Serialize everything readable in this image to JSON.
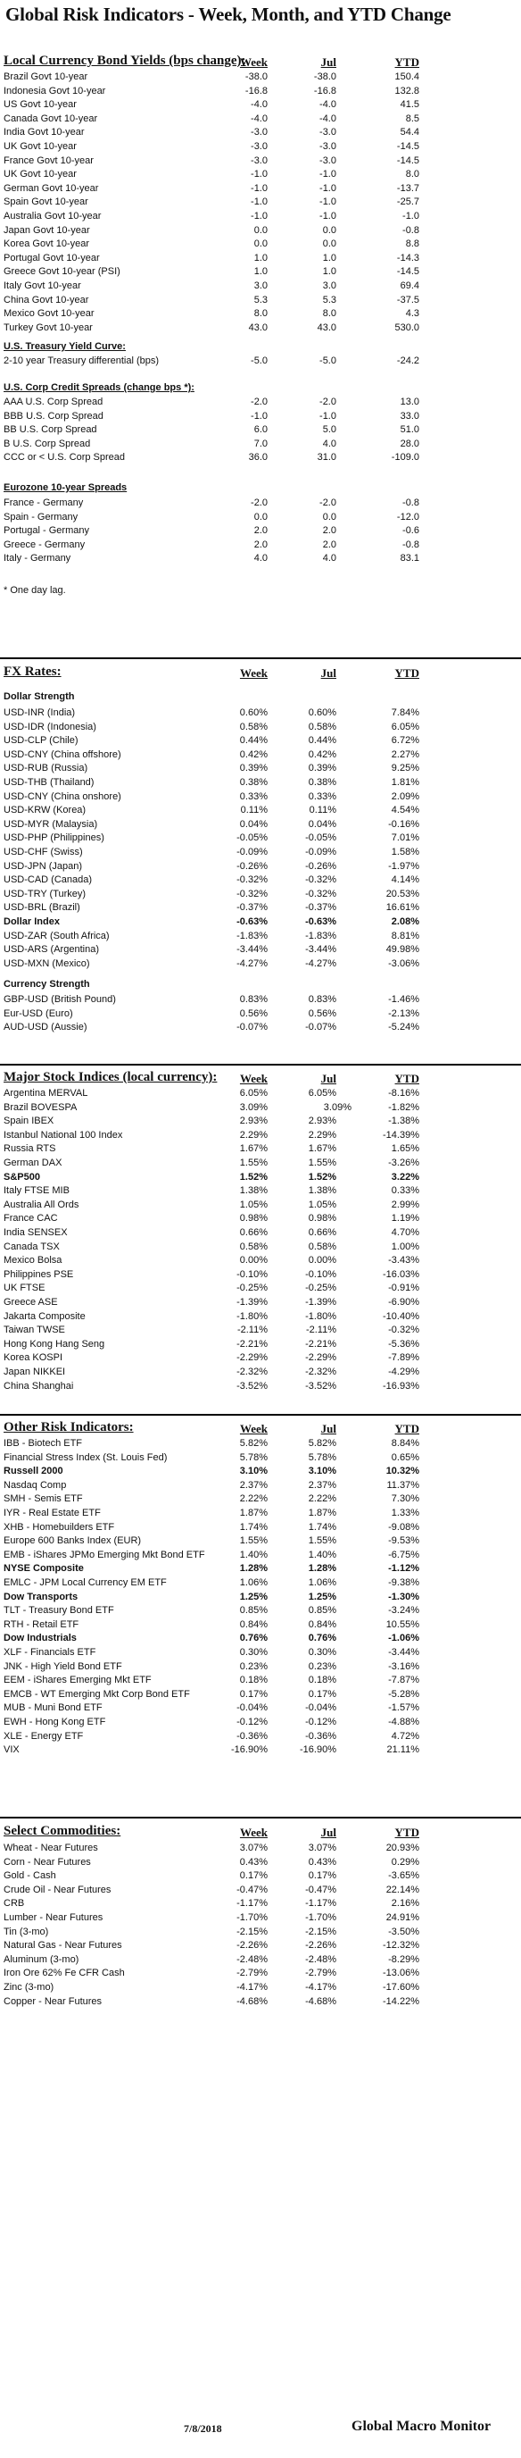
{
  "title": "Global Risk Indicators - Week, Month, and YTD Change",
  "columns": {
    "week": "Week",
    "month": "Jul",
    "ytd": "YTD"
  },
  "bonds": {
    "heading": "Local Currency Bond Yields (bps change):",
    "rows": [
      {
        "name": "Brazil Govt 10-year",
        "week": "-38.0",
        "month": "-38.0",
        "ytd": "150.4"
      },
      {
        "name": "Indonesia Govt 10-year",
        "week": "-16.8",
        "month": "-16.8",
        "ytd": "132.8"
      },
      {
        "name": "US Govt 10-year",
        "week": "-4.0",
        "month": "-4.0",
        "ytd": "41.5"
      },
      {
        "name": "Canada Govt 10-year",
        "week": "-4.0",
        "month": "-4.0",
        "ytd": "8.5"
      },
      {
        "name": "India Govt 10-year",
        "week": "-3.0",
        "month": "-3.0",
        "ytd": "54.4"
      },
      {
        "name": "UK Govt 10-year",
        "week": "-3.0",
        "month": "-3.0",
        "ytd": "-14.5"
      },
      {
        "name": "France Govt 10-year",
        "week": "-3.0",
        "month": "-3.0",
        "ytd": "-14.5"
      },
      {
        "name": "UK Govt 10-year",
        "week": "-1.0",
        "month": "-1.0",
        "ytd": "8.0"
      },
      {
        "name": "German Govt 10-year",
        "week": "-1.0",
        "month": "-1.0",
        "ytd": "-13.7"
      },
      {
        "name": "Spain Govt 10-year",
        "week": "-1.0",
        "month": "-1.0",
        "ytd": "-25.7"
      },
      {
        "name": "Australia Govt 10-year",
        "week": "-1.0",
        "month": "-1.0",
        "ytd": "-1.0"
      },
      {
        "name": "Japan Govt 10-year",
        "week": "0.0",
        "month": "0.0",
        "ytd": "-0.8"
      },
      {
        "name": "Korea Govt 10-year",
        "week": "0.0",
        "month": "0.0",
        "ytd": "8.8"
      },
      {
        "name": "Portugal Govt 10-year",
        "week": "1.0",
        "month": "1.0",
        "ytd": "-14.3"
      },
      {
        "name": "Greece Govt 10-year (PSI)",
        "week": "1.0",
        "month": "1.0",
        "ytd": "-14.5"
      },
      {
        "name": "Italy Govt 10-year",
        "week": "3.0",
        "month": "3.0",
        "ytd": "69.4"
      },
      {
        "name": "China Govt 10-year",
        "week": "5.3",
        "month": "5.3",
        "ytd": "-37.5"
      },
      {
        "name": "Mexico Govt 10-year",
        "week": "8.0",
        "month": "8.0",
        "ytd": "4.3"
      },
      {
        "name": "Turkey Govt 10-year",
        "week": "43.0",
        "month": "43.0",
        "ytd": "530.0"
      }
    ],
    "curve_heading": "U.S. Treasury Yield Curve:",
    "curve_rows": [
      {
        "name": "2-10 year Treasury differential (bps)",
        "week": "-5.0",
        "month": "-5.0",
        "ytd": "-24.2"
      }
    ],
    "credit_heading": "U.S. Corp Credit Spreads (change bps *):",
    "credit_rows": [
      {
        "name": "AAA U.S. Corp Spread",
        "week": "-2.0",
        "month": "-2.0",
        "ytd": "13.0"
      },
      {
        "name": "BBB U.S. Corp Spread",
        "week": "-1.0",
        "month": "-1.0",
        "ytd": "33.0"
      },
      {
        "name": "BB U.S. Corp Spread",
        "week": "6.0",
        "month": "5.0",
        "ytd": "51.0"
      },
      {
        "name": "B U.S. Corp Spread",
        "week": "7.0",
        "month": "4.0",
        "ytd": "28.0"
      },
      {
        "name": "CCC or < U.S. Corp Spread",
        "week": "36.0",
        "month": "31.0",
        "ytd": "-109.0"
      }
    ],
    "euro_heading": "Eurozone 10-year Spreads",
    "euro_rows": [
      {
        "name": "France - Germany",
        "week": "-2.0",
        "month": "-2.0",
        "ytd": "-0.8"
      },
      {
        "name": "Spain - Germany",
        "week": "0.0",
        "month": "0.0",
        "ytd": "-12.0"
      },
      {
        "name": "Portugal - Germany",
        "week": "2.0",
        "month": "2.0",
        "ytd": "-0.6"
      },
      {
        "name": "Greece - Germany",
        "week": "2.0",
        "month": "2.0",
        "ytd": "-0.8"
      },
      {
        "name": "Italy - Germany",
        "week": "4.0",
        "month": "4.0",
        "ytd": "83.1"
      }
    ],
    "footnote": "* One day lag."
  },
  "fx": {
    "heading": "FX Rates:",
    "strength_heading": "Dollar Strength",
    "rows": [
      {
        "name": "USD-INR (India)",
        "week": "0.60%",
        "month": "0.60%",
        "ytd": "7.84%"
      },
      {
        "name": "USD-IDR (Indonesia)",
        "week": "0.58%",
        "month": "0.58%",
        "ytd": "6.05%"
      },
      {
        "name": "USD-CLP (Chile)",
        "week": "0.44%",
        "month": "0.44%",
        "ytd": "6.72%"
      },
      {
        "name": "USD-CNY (China offshore)",
        "week": "0.42%",
        "month": "0.42%",
        "ytd": "2.27%"
      },
      {
        "name": "USD-RUB (Russia)",
        "week": "0.39%",
        "month": "0.39%",
        "ytd": "9.25%"
      },
      {
        "name": "USD-THB  (Thailand)",
        "week": "0.38%",
        "month": "0.38%",
        "ytd": "1.81%"
      },
      {
        "name": "USD-CNY (China onshore)",
        "week": "0.33%",
        "month": "0.33%",
        "ytd": "2.09%"
      },
      {
        "name": "USD-KRW (Korea)",
        "week": "0.11%",
        "month": "0.11%",
        "ytd": "4.54%"
      },
      {
        "name": "USD-MYR (Malaysia)",
        "week": "0.04%",
        "month": "0.04%",
        "ytd": "-0.16%"
      },
      {
        "name": "USD-PHP (Philippines)",
        "week": "-0.05%",
        "month": "-0.05%",
        "ytd": "7.01%"
      },
      {
        "name": "USD-CHF (Swiss)",
        "week": "-0.09%",
        "month": "-0.09%",
        "ytd": "1.58%"
      },
      {
        "name": "USD-JPN (Japan)",
        "week": "-0.26%",
        "month": "-0.26%",
        "ytd": "-1.97%"
      },
      {
        "name": "USD-CAD (Canada)",
        "week": "-0.32%",
        "month": "-0.32%",
        "ytd": "4.14%"
      },
      {
        "name": "USD-TRY (Turkey)",
        "week": "-0.32%",
        "month": "-0.32%",
        "ytd": "20.53%"
      },
      {
        "name": "USD-BRL (Brazil)",
        "week": "-0.37%",
        "month": "-0.37%",
        "ytd": "16.61%"
      },
      {
        "name": "Dollar Index",
        "week": "-0.63%",
        "month": "-0.63%",
        "ytd": "2.08%",
        "bold": true
      },
      {
        "name": "USD-ZAR (South Africa)",
        "week": "-1.83%",
        "month": "-1.83%",
        "ytd": "8.81%"
      },
      {
        "name": "USD-ARS (Argentina)",
        "week": "-3.44%",
        "month": "-3.44%",
        "ytd": "49.98%"
      },
      {
        "name": "USD-MXN  (Mexico)",
        "week": "-4.27%",
        "month": "-4.27%",
        "ytd": "-3.06%"
      }
    ],
    "currency_heading": "Currency Strength",
    "currency_rows": [
      {
        "name": "GBP-USD (British Pound)",
        "week": "0.83%",
        "month": "0.83%",
        "ytd": "-1.46%"
      },
      {
        "name": "Eur-USD (Euro)",
        "week": "0.56%",
        "month": "0.56%",
        "ytd": "-2.13%"
      },
      {
        "name": "AUD-USD (Aussie)",
        "week": "-0.07%",
        "month": "-0.07%",
        "ytd": "-5.24%"
      }
    ]
  },
  "stocks": {
    "heading": "Major Stock Indices (local currency):",
    "rows": [
      {
        "name": "Argentina MERVAL",
        "week": "6.05%",
        "month": "6.05%",
        "ytd": "-8.16%"
      },
      {
        "name": "Brazil BOVESPA",
        "week": "3.09%",
        "month": "3.09%",
        "ytd": "-1.82%"
      },
      {
        "name": "Spain IBEX",
        "week": "2.93%",
        "month": "2.93%",
        "ytd": "-1.38%"
      },
      {
        "name": "Istanbul National 100 Index",
        "week": "2.29%",
        "month": "2.29%",
        "ytd": "-14.39%"
      },
      {
        "name": "Russia RTS",
        "week": "1.67%",
        "month": "1.67%",
        "ytd": "1.65%"
      },
      {
        "name": "German DAX",
        "week": "1.55%",
        "month": "1.55%",
        "ytd": "-3.26%"
      },
      {
        "name": "S&P500",
        "week": "1.52%",
        "month": "1.52%",
        "ytd": "3.22%",
        "bold": true
      },
      {
        "name": "Italy FTSE MIB",
        "week": "1.38%",
        "month": "1.38%",
        "ytd": "0.33%"
      },
      {
        "name": "Australia All Ords",
        "week": "1.05%",
        "month": "1.05%",
        "ytd": "2.99%"
      },
      {
        "name": "France CAC",
        "week": "0.98%",
        "month": "0.98%",
        "ytd": "1.19%"
      },
      {
        "name": "India SENSEX",
        "week": "0.66%",
        "month": "0.66%",
        "ytd": "4.70%"
      },
      {
        "name": "Canada TSX",
        "week": "0.58%",
        "month": "0.58%",
        "ytd": "1.00%"
      },
      {
        "name": "Mexico Bolsa",
        "week": "0.00%",
        "month": "0.00%",
        "ytd": "-3.43%"
      },
      {
        "name": "Philippines PSE",
        "week": "-0.10%",
        "month": "-0.10%",
        "ytd": "-16.03%"
      },
      {
        "name": "UK FTSE",
        "week": "-0.25%",
        "month": "-0.25%",
        "ytd": "-0.91%"
      },
      {
        "name": "Greece ASE",
        "week": "-1.39%",
        "month": "-1.39%",
        "ytd": "-6.90%"
      },
      {
        "name": "Jakarta Composite",
        "week": "-1.80%",
        "month": "-1.80%",
        "ytd": "-10.40%"
      },
      {
        "name": "Taiwan  TWSE",
        "week": "-2.11%",
        "month": "-2.11%",
        "ytd": "-0.32%"
      },
      {
        "name": "Hong Kong Hang Seng",
        "week": "-2.21%",
        "month": "-2.21%",
        "ytd": "-5.36%"
      },
      {
        "name": "Korea KOSPI",
        "week": "-2.29%",
        "month": "-2.29%",
        "ytd": "-7.89%"
      },
      {
        "name": "Japan NIKKEI",
        "week": "-2.32%",
        "month": "-2.32%",
        "ytd": "-4.29%"
      },
      {
        "name": "China Shanghai",
        "week": "-3.52%",
        "month": "-3.52%",
        "ytd": "-16.93%"
      }
    ]
  },
  "risk": {
    "heading": "Other Risk Indicators:",
    "rows": [
      {
        "name": "IBB - Biotech ETF",
        "week": "5.82%",
        "month": "5.82%",
        "ytd": "8.84%"
      },
      {
        "name": "Financial Stress Index (St. Louis Fed)",
        "week": "5.78%",
        "month": "5.78%",
        "ytd": "0.65%"
      },
      {
        "name": "Russell 2000",
        "week": "3.10%",
        "month": "3.10%",
        "ytd": "10.32%",
        "bold": true
      },
      {
        "name": "Nasdaq Comp",
        "week": "2.37%",
        "month": "2.37%",
        "ytd": "11.37%"
      },
      {
        "name": "SMH - Semis ETF",
        "week": "2.22%",
        "month": "2.22%",
        "ytd": "7.30%"
      },
      {
        "name": "IYR - Real Estate ETF",
        "week": "1.87%",
        "month": "1.87%",
        "ytd": "1.33%"
      },
      {
        "name": "XHB - Homebuilders ETF",
        "week": "1.74%",
        "month": "1.74%",
        "ytd": "-9.08%"
      },
      {
        "name": "Europe 600 Banks Index (EUR)",
        "week": "1.55%",
        "month": "1.55%",
        "ytd": "-9.53%"
      },
      {
        "name": "EMB - iShares JPMo Emerging Mkt Bond ETF",
        "week": "1.40%",
        "month": "1.40%",
        "ytd": "-6.75%"
      },
      {
        "name": "NYSE Composite",
        "week": "1.28%",
        "month": "1.28%",
        "ytd": "-1.12%",
        "bold": true
      },
      {
        "name": "EMLC - JPM Local Currency EM ETF",
        "week": "1.06%",
        "month": "1.06%",
        "ytd": "-9.38%"
      },
      {
        "name": "Dow Transports",
        "week": "1.25%",
        "month": "1.25%",
        "ytd": "-1.30%",
        "bold": true
      },
      {
        "name": "TLT - Treasury Bond ETF",
        "week": "0.85%",
        "month": "0.85%",
        "ytd": "-3.24%"
      },
      {
        "name": "RTH - Retail ETF",
        "week": "0.84%",
        "month": "0.84%",
        "ytd": "10.55%"
      },
      {
        "name": "Dow Industrials",
        "week": "0.76%",
        "month": "0.76%",
        "ytd": "-1.06%",
        "bold": true
      },
      {
        "name": "XLF - Financials ETF",
        "week": "0.30%",
        "month": "0.30%",
        "ytd": "-3.44%"
      },
      {
        "name": "JNK - High Yield Bond ETF",
        "week": "0.23%",
        "month": "0.23%",
        "ytd": "-3.16%"
      },
      {
        "name": "EEM - iShares Emerging Mkt ETF",
        "week": "0.18%",
        "month": "0.18%",
        "ytd": "-7.87%"
      },
      {
        "name": "EMCB - WT Emerging Mkt Corp Bond ETF",
        "week": "0.17%",
        "month": "0.17%",
        "ytd": "-5.28%"
      },
      {
        "name": "MUB - Muni Bond ETF",
        "week": "-0.04%",
        "month": "-0.04%",
        "ytd": "-1.57%"
      },
      {
        "name": "EWH - Hong Kong ETF",
        "week": "-0.12%",
        "month": "-0.12%",
        "ytd": "-4.88%"
      },
      {
        "name": "XLE - Energy ETF",
        "week": "-0.36%",
        "month": "-0.36%",
        "ytd": "4.72%"
      },
      {
        "name": "VIX",
        "week": "-16.90%",
        "month": "-16.90%",
        "ytd": "21.11%"
      }
    ]
  },
  "commodities": {
    "heading": "Select Commodities:",
    "rows": [
      {
        "name": "Wheat - Near Futures",
        "week": "3.07%",
        "month": "3.07%",
        "ytd": "20.93%"
      },
      {
        "name": "Corn - Near Futures",
        "week": "0.43%",
        "month": "0.43%",
        "ytd": "0.29%"
      },
      {
        "name": "Gold - Cash",
        "week": "0.17%",
        "month": "0.17%",
        "ytd": "-3.65%"
      },
      {
        "name": "Crude Oil - Near Futures",
        "week": "-0.47%",
        "month": "-0.47%",
        "ytd": "22.14%"
      },
      {
        "name": "CRB",
        "week": "-1.17%",
        "month": "-1.17%",
        "ytd": "2.16%"
      },
      {
        "name": "Lumber - Near Futures",
        "week": "-1.70%",
        "month": "-1.70%",
        "ytd": "24.91%"
      },
      {
        "name": "Tin (3-mo)",
        "week": "-2.15%",
        "month": "-2.15%",
        "ytd": "-3.50%"
      },
      {
        "name": "Natural Gas - Near Futures",
        "week": "-2.26%",
        "month": "-2.26%",
        "ytd": "-12.32%"
      },
      {
        "name": "Aluminum (3-mo)",
        "week": "-2.48%",
        "month": "-2.48%",
        "ytd": "-8.29%"
      },
      {
        "name": "Iron Ore 62% Fe CFR Cash",
        "week": "-2.79%",
        "month": "-2.79%",
        "ytd": "-13.06%"
      },
      {
        "name": "Zinc (3-mo)",
        "week": "-4.17%",
        "month": "-4.17%",
        "ytd": "-17.60%"
      },
      {
        "name": "Copper - Near Futures",
        "week": "-4.68%",
        "month": "-4.68%",
        "ytd": "-14.22%"
      }
    ]
  },
  "footer": {
    "date": "7/8/2018",
    "brand": "Global Macro Monitor"
  }
}
